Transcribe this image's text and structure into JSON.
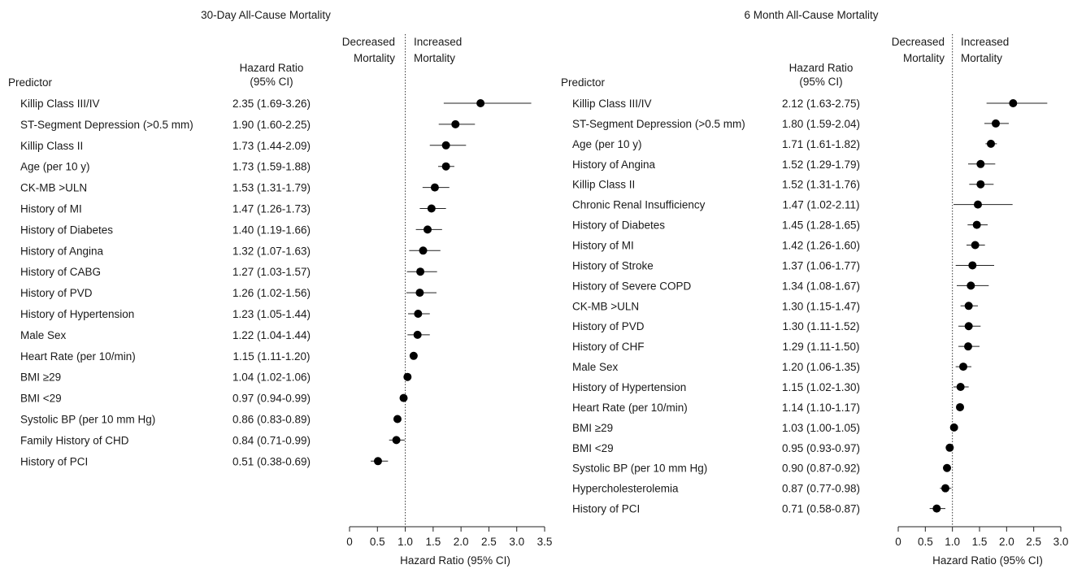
{
  "chart_data": [
    {
      "type": "forest",
      "title": "30-Day All-Cause Mortality",
      "column_predictor": "Predictor",
      "column_hr_line1": "Hazard Ratio",
      "column_hr_line2": "(95% CI)",
      "decreased_line1": "Decreased",
      "decreased_line2": "Mortality",
      "increased_line1": "Increased",
      "increased_line2": "Mortality",
      "xlabel": "Hazard Ratio (95% CI)",
      "xlim": [
        0,
        3.5
      ],
      "xticks": [
        "0",
        "0.5",
        "1.0",
        "1.5",
        "2.0",
        "2.5",
        "3.0",
        "3.5"
      ],
      "xtick_values": [
        0,
        0.5,
        1.0,
        1.5,
        2.0,
        2.5,
        3.0,
        3.5
      ],
      "reference": 1.0,
      "rows": [
        {
          "label": "Killip Class III/IV",
          "text": "2.35 (1.69-3.26)",
          "hr": 2.35,
          "lo": 1.69,
          "hi": 3.26
        },
        {
          "label": "ST-Segment Depression (>0.5 mm)",
          "text": "1.90 (1.60-2.25)",
          "hr": 1.9,
          "lo": 1.6,
          "hi": 2.25
        },
        {
          "label": "Killip Class II",
          "text": "1.73 (1.44-2.09)",
          "hr": 1.73,
          "lo": 1.44,
          "hi": 2.09
        },
        {
          "label": "Age (per 10 y)",
          "text": "1.73 (1.59-1.88)",
          "hr": 1.73,
          "lo": 1.59,
          "hi": 1.88
        },
        {
          "label": "CK-MB >ULN",
          "text": "1.53 (1.31-1.79)",
          "hr": 1.53,
          "lo": 1.31,
          "hi": 1.79
        },
        {
          "label": "History of MI",
          "text": "1.47 (1.26-1.73)",
          "hr": 1.47,
          "lo": 1.26,
          "hi": 1.73
        },
        {
          "label": "History of Diabetes",
          "text": "1.40 (1.19-1.66)",
          "hr": 1.4,
          "lo": 1.19,
          "hi": 1.66
        },
        {
          "label": "History of Angina",
          "text": "1.32 (1.07-1.63)",
          "hr": 1.32,
          "lo": 1.07,
          "hi": 1.63
        },
        {
          "label": "History of CABG",
          "text": "1.27 (1.03-1.57)",
          "hr": 1.27,
          "lo": 1.03,
          "hi": 1.57
        },
        {
          "label": "History of PVD",
          "text": "1.26 (1.02-1.56)",
          "hr": 1.26,
          "lo": 1.02,
          "hi": 1.56
        },
        {
          "label": "History of Hypertension",
          "text": "1.23 (1.05-1.44)",
          "hr": 1.23,
          "lo": 1.05,
          "hi": 1.44
        },
        {
          "label": "Male Sex",
          "text": "1.22 (1.04-1.44)",
          "hr": 1.22,
          "lo": 1.04,
          "hi": 1.44
        },
        {
          "label": "Heart Rate (per 10/min)",
          "text": "1.15 (1.11-1.20)",
          "hr": 1.15,
          "lo": 1.11,
          "hi": 1.2
        },
        {
          "label": "BMI ≥29",
          "text": "1.04 (1.02-1.06)",
          "hr": 1.04,
          "lo": 1.02,
          "hi": 1.06
        },
        {
          "label": "BMI <29",
          "text": "0.97 (0.94-0.99)",
          "hr": 0.97,
          "lo": 0.94,
          "hi": 0.99
        },
        {
          "label": "Systolic BP (per 10 mm Hg)",
          "text": "0.86 (0.83-0.89)",
          "hr": 0.86,
          "lo": 0.83,
          "hi": 0.89
        },
        {
          "label": "Family History of CHD",
          "text": "0.84 (0.71-0.99)",
          "hr": 0.84,
          "lo": 0.71,
          "hi": 0.99
        },
        {
          "label": "History of PCI",
          "text": "0.51 (0.38-0.69)",
          "hr": 0.51,
          "lo": 0.38,
          "hi": 0.69
        }
      ]
    },
    {
      "type": "forest",
      "title": "6 Month All-Cause Mortality",
      "column_predictor": "Predictor",
      "column_hr_line1": "Hazard Ratio",
      "column_hr_line2": "(95% CI)",
      "decreased_line1": "Decreased",
      "decreased_line2": "Mortality",
      "increased_line1": "Increased",
      "increased_line2": "Mortality",
      "xlabel": "Hazard Ratio (95% CI)",
      "xlim": [
        0,
        3.0
      ],
      "xticks": [
        "0",
        "0.5",
        "1.0",
        "1.5",
        "2.0",
        "2.5",
        "3.0"
      ],
      "xtick_values": [
        0,
        0.5,
        1.0,
        1.5,
        2.0,
        2.5,
        3.0
      ],
      "reference": 1.0,
      "rows": [
        {
          "label": "Killip Class III/IV",
          "text": "2.12 (1.63-2.75)",
          "hr": 2.12,
          "lo": 1.63,
          "hi": 2.75
        },
        {
          "label": "ST-Segment Depression (>0.5 mm)",
          "text": "1.80 (1.59-2.04)",
          "hr": 1.8,
          "lo": 1.59,
          "hi": 2.04
        },
        {
          "label": "Age (per 10 y)",
          "text": "1.71 (1.61-1.82)",
          "hr": 1.71,
          "lo": 1.61,
          "hi": 1.82
        },
        {
          "label": "History of Angina",
          "text": "1.52 (1.29-1.79)",
          "hr": 1.52,
          "lo": 1.29,
          "hi": 1.79
        },
        {
          "label": "Killip Class II",
          "text": "1.52 (1.31-1.76)",
          "hr": 1.52,
          "lo": 1.31,
          "hi": 1.76
        },
        {
          "label": "Chronic Renal Insufficiency",
          "text": "1.47 (1.02-2.11)",
          "hr": 1.47,
          "lo": 1.02,
          "hi": 2.11
        },
        {
          "label": "History of Diabetes",
          "text": "1.45 (1.28-1.65)",
          "hr": 1.45,
          "lo": 1.28,
          "hi": 1.65
        },
        {
          "label": "History of MI",
          "text": "1.42 (1.26-1.60)",
          "hr": 1.42,
          "lo": 1.26,
          "hi": 1.6
        },
        {
          "label": "History of Stroke",
          "text": "1.37 (1.06-1.77)",
          "hr": 1.37,
          "lo": 1.06,
          "hi": 1.77
        },
        {
          "label": "History of Severe COPD",
          "text": "1.34 (1.08-1.67)",
          "hr": 1.34,
          "lo": 1.08,
          "hi": 1.67
        },
        {
          "label": "CK-MB >ULN",
          "text": "1.30 (1.15-1.47)",
          "hr": 1.3,
          "lo": 1.15,
          "hi": 1.47
        },
        {
          "label": "History of PVD",
          "text": "1.30 (1.11-1.52)",
          "hr": 1.3,
          "lo": 1.11,
          "hi": 1.52
        },
        {
          "label": "History of CHF",
          "text": "1.29 (1.11-1.50)",
          "hr": 1.29,
          "lo": 1.11,
          "hi": 1.5
        },
        {
          "label": "Male Sex",
          "text": "1.20 (1.06-1.35)",
          "hr": 1.2,
          "lo": 1.06,
          "hi": 1.35
        },
        {
          "label": "History of Hypertension",
          "text": "1.15 (1.02-1.30)",
          "hr": 1.15,
          "lo": 1.02,
          "hi": 1.3
        },
        {
          "label": "Heart Rate (per 10/min)",
          "text": "1.14 (1.10-1.17)",
          "hr": 1.14,
          "lo": 1.1,
          "hi": 1.17
        },
        {
          "label": "BMI ≥29",
          "text": "1.03 (1.00-1.05)",
          "hr": 1.03,
          "lo": 1.0,
          "hi": 1.05
        },
        {
          "label": "BMI <29",
          "text": "0.95 (0.93-0.97)",
          "hr": 0.95,
          "lo": 0.93,
          "hi": 0.97
        },
        {
          "label": "Systolic BP (per 10 mm Hg)",
          "text": "0.90 (0.87-0.92)",
          "hr": 0.9,
          "lo": 0.87,
          "hi": 0.92
        },
        {
          "label": "Hypercholesterolemia",
          "text": "0.87 (0.77-0.98)",
          "hr": 0.87,
          "lo": 0.77,
          "hi": 0.98
        },
        {
          "label": "History of PCI",
          "text": "0.71 (0.58-0.87)",
          "hr": 0.71,
          "lo": 0.58,
          "hi": 0.87
        }
      ]
    }
  ]
}
